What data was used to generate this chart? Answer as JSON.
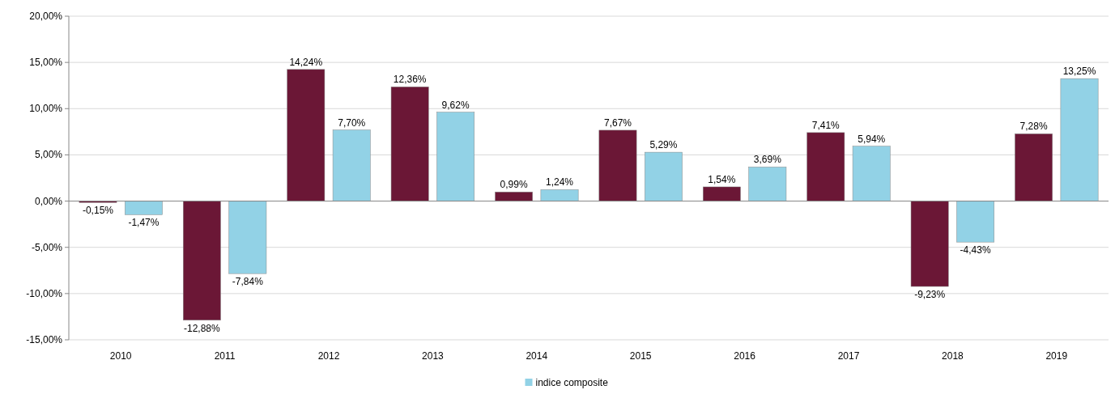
{
  "chart_data": {
    "type": "bar",
    "categories": [
      "2010",
      "2011",
      "2012",
      "2013",
      "2014",
      "2015",
      "2016",
      "2017",
      "2018",
      "2019"
    ],
    "series": [
      {
        "color": "#6b1736",
        "values": [
          -0.15,
          -12.88,
          14.24,
          12.36,
          0.99,
          7.67,
          1.54,
          7.41,
          -9.23,
          7.28
        ],
        "value_labels": [
          "-0,15%",
          "-12,88%",
          "14,24%",
          "12,36%",
          "0,99%",
          "7,67%",
          "1,54%",
          "7,41%",
          "-9,23%",
          "7,28%"
        ]
      },
      {
        "name": "indice composite",
        "color": "#92d2e6",
        "values": [
          -1.47,
          -7.84,
          7.7,
          9.62,
          1.24,
          5.29,
          3.69,
          5.94,
          -4.43,
          13.25
        ],
        "value_labels": [
          "-1,47%",
          "-7,84%",
          "7,70%",
          "9,62%",
          "1,24%",
          "5,29%",
          "3,69%",
          "5,94%",
          "-4,43%",
          "13,25%"
        ]
      }
    ],
    "ylim": [
      -15,
      20
    ],
    "yticks": [
      {
        "value": -15,
        "label": "-15,00%"
      },
      {
        "value": -10,
        "label": "-10,00%"
      },
      {
        "value": -5,
        "label": "-5,00%"
      },
      {
        "value": 0,
        "label": "0,00%"
      },
      {
        "value": 5,
        "label": "5,00%"
      },
      {
        "value": 10,
        "label": "10,00%"
      },
      {
        "value": 15,
        "label": "15,00%"
      },
      {
        "value": 20,
        "label": "20,00%"
      }
    ],
    "grid": "y",
    "legend": "bottom"
  }
}
